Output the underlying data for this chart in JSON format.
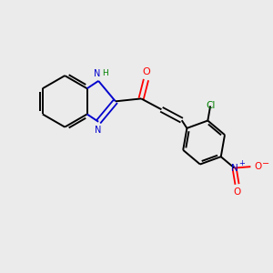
{
  "background_color": "#ebebeb",
  "bond_color": "#000000",
  "N_color": "#0000cd",
  "O_color": "#ff0000",
  "Cl_color": "#008000",
  "H_color": "#008000",
  "figsize": [
    3.0,
    3.0
  ],
  "dpi": 100,
  "layout": {
    "xlim": [
      0,
      10
    ],
    "ylim": [
      0,
      10
    ]
  }
}
